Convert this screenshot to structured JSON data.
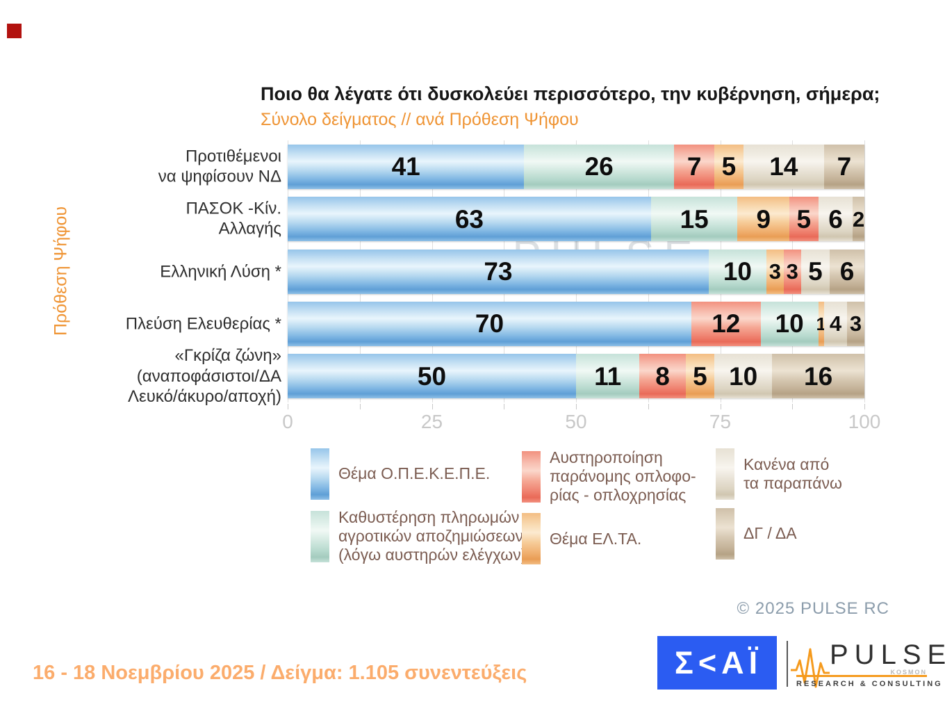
{
  "slide": {
    "title": "Ποιο θα λέγατε ότι δυσκολεύει περισσότερο, την κυβέρνηση, σήμερα;",
    "subtitle": "Σύνολο δείγματος // ανά Πρόθεση Ψήφου",
    "footer_left": "16 - 18 Νοεμβρίου 2025  /  Δείγμα:  1.105 συνεντεύξεις",
    "copyright": "©  2025  PULSE RC",
    "watermark_line1": "PULSE",
    "watermark_line2": "RESEARCH & CONSULTING"
  },
  "axis": {
    "y_label": "Πρόθεση Ψήφου",
    "x_ticks": [
      0,
      25,
      50,
      75,
      100
    ],
    "x_minor_step": 12.5,
    "x_max": 100
  },
  "colors": {
    "opekepe": "#7fb6e3",
    "agro": "#b6d9cd",
    "guns": "#ef8270",
    "elta": "#f0af6f",
    "none": "#ddd5c3",
    "dk": "#c4b298",
    "accent_orange": "#ef9434",
    "footer_orange": "#fbac6c",
    "skai_blue": "#2b5cf2",
    "corner_red": "#b2120f",
    "legend_text": "#7b5c51"
  },
  "chart_data": {
    "type": "bar",
    "orientation": "horizontal-stacked",
    "title": "Ποιο θα λέγατε ότι δυσκολεύει περισσότερο, την κυβέρνηση, σήμερα;",
    "subtitle": "Σύνολο δείγματος // ανά Πρόθεση Ψήφου",
    "xlabel": "",
    "ylabel": "Πρόθεση Ψήφου",
    "xlim": [
      0,
      100
    ],
    "grid": true,
    "categories": [
      "Προτιθέμενοι να ψηφίσουν ΝΔ",
      "ΠΑΣΟΚ -Κίν. Αλλαγής",
      "Ελληνική Λύση *",
      "Πλεύση Ελευθερίας *",
      "«Γκρίζα ζώνη» (αναποφάσιστοι/ΔΑ Λευκό/άκυρο/αποχή)"
    ],
    "series": [
      {
        "name": "Θέμα Ο.Π.Ε.Κ.Ε.Π.Ε.",
        "key": "opekepe",
        "values": [
          41,
          63,
          73,
          70,
          50
        ]
      },
      {
        "name": "Καθυστέρηση πληρωμών αγροτικών αποζημιώσεων (λόγω αυστηρών ελέγχων)",
        "key": "agro",
        "values": [
          26,
          15,
          10,
          10,
          11
        ]
      },
      {
        "name": "Αυστηροποίηση παράνομης οπλοφορίας - οπλοχρησίας",
        "key": "guns",
        "values": [
          7,
          5,
          3,
          12,
          8
        ]
      },
      {
        "name": "Θέμα ΕΛ.ΤΑ.",
        "key": "elta",
        "values": [
          5,
          9,
          3,
          1,
          5
        ]
      },
      {
        "name": "Κανένα από τα παραπάνω",
        "key": "none",
        "values": [
          14,
          6,
          5,
          4,
          10
        ]
      },
      {
        "name": "ΔΓ / ΔΑ",
        "key": "dk",
        "values": [
          7,
          2,
          6,
          3,
          16
        ]
      }
    ],
    "rows": [
      {
        "label_lines": [
          "Προτιθέμενοι",
          "να ψηφίσουν ΝΔ"
        ],
        "segments": [
          {
            "key": "opekepe",
            "value": 41
          },
          {
            "key": "agro",
            "value": 26
          },
          {
            "key": "guns",
            "value": 7
          },
          {
            "key": "elta",
            "value": 5
          },
          {
            "key": "none",
            "value": 14
          },
          {
            "key": "dk",
            "value": 7
          }
        ]
      },
      {
        "label_lines": [
          "ΠΑΣΟΚ -Κίν.",
          "Αλλαγής"
        ],
        "segments": [
          {
            "key": "opekepe",
            "value": 63
          },
          {
            "key": "agro",
            "value": 15
          },
          {
            "key": "elta",
            "value": 9
          },
          {
            "key": "guns",
            "value": 5
          },
          {
            "key": "none",
            "value": 6
          },
          {
            "key": "dk",
            "value": 2
          }
        ]
      },
      {
        "label_lines": [
          "Ελληνική Λύση *"
        ],
        "segments": [
          {
            "key": "opekepe",
            "value": 73
          },
          {
            "key": "agro",
            "value": 10
          },
          {
            "key": "elta",
            "value": 3
          },
          {
            "key": "guns",
            "value": 3
          },
          {
            "key": "none",
            "value": 5
          },
          {
            "key": "dk",
            "value": 6
          }
        ]
      },
      {
        "label_lines": [
          "Πλεύση Ελευθερίας *"
        ],
        "segments": [
          {
            "key": "opekepe",
            "value": 70
          },
          {
            "key": "guns",
            "value": 12
          },
          {
            "key": "agro",
            "value": 10
          },
          {
            "key": "elta",
            "value": 1
          },
          {
            "key": "none",
            "value": 4
          },
          {
            "key": "dk",
            "value": 3
          }
        ]
      },
      {
        "label_lines": [
          "«Γκρίζα ζώνη»",
          "(αναποφάσιστοι/ΔΑ",
          "Λευκό/άκυρο/αποχή)"
        ],
        "segments": [
          {
            "key": "opekepe",
            "value": 50
          },
          {
            "key": "agro",
            "value": 11
          },
          {
            "key": "guns",
            "value": 8
          },
          {
            "key": "elta",
            "value": 5
          },
          {
            "key": "none",
            "value": 10
          },
          {
            "key": "dk",
            "value": 16
          }
        ]
      }
    ]
  },
  "legend": {
    "columns": [
      [
        "opekepe",
        "agro"
      ],
      [
        "guns",
        "elta"
      ],
      [
        "none",
        "dk"
      ]
    ],
    "items": {
      "opekepe": {
        "label_lines": [
          "Θέμα Ο.Π.Ε.Κ.Ε.Π.Ε."
        ]
      },
      "agro": {
        "label_lines": [
          "Καθυστέρηση πληρωμών",
          "αγροτικών αποζημιώσεων",
          "(λόγω αυστηρών ελέγχων)"
        ]
      },
      "guns": {
        "label_lines": [
          "Αυστηροποίηση",
          "παράνομης οπλοφο-",
          "ρίας - οπλοχρησίας"
        ]
      },
      "elta": {
        "label_lines": [
          "Θέμα ΕΛ.ΤΑ."
        ]
      },
      "none": {
        "label_lines": [
          "Κανένα από",
          "τα παραπάνω"
        ]
      },
      "dk": {
        "label_lines": [
          "ΔΓ / ΔΑ"
        ]
      }
    }
  },
  "logos": {
    "skai": {
      "text": "ΣΚΑΪ",
      "display": "Σ<ΑΪ"
    },
    "pulse": {
      "word": "PULSE",
      "kosmon": "KOSMON",
      "sub": "RESEARCH & CONSULTING"
    }
  }
}
